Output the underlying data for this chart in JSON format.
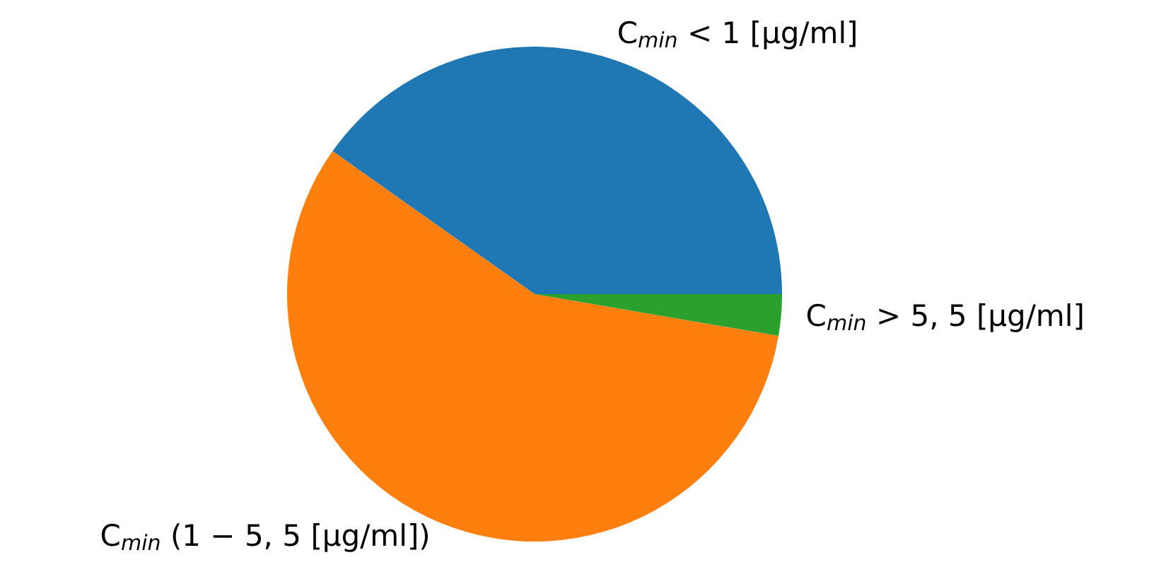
{
  "chart_data": {
    "type": "pie",
    "categories": [
      "C$_{min}$ < 1 [μg/ml]",
      "C$_{min}$ (1 − 5, 5 [μg/ml])",
      "C$_{min}$ > 5, 5 [μg/ml]"
    ],
    "values": [
      40.2,
      57.1,
      2.7
    ],
    "colors": [
      "#1f77b4",
      "#ff7f0e",
      "#2ca02c"
    ]
  }
}
